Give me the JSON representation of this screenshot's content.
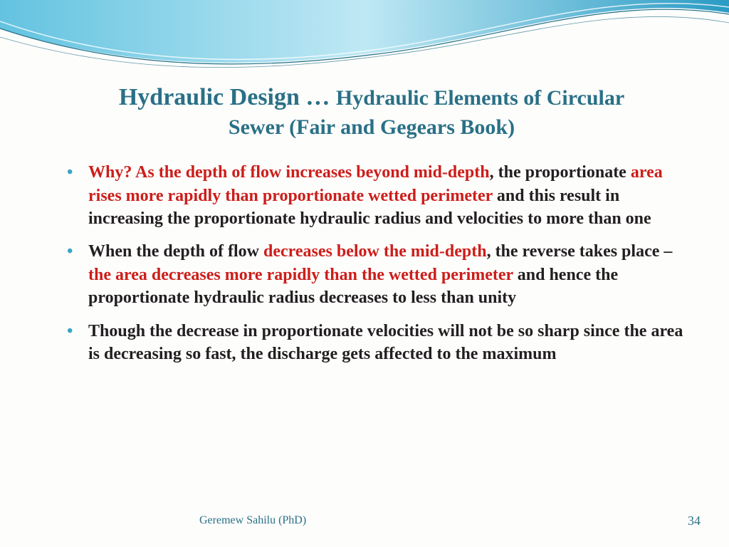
{
  "colors": {
    "title": "#2a7086",
    "bullet_marker": "#3aa6c2",
    "highlight": "#cc1e1a",
    "body_text": "#231f20",
    "footer": "#2a7086",
    "wave_light": "#bfe8f4",
    "wave_mid": "#63c3e0",
    "wave_dark": "#2a9bc4",
    "wave_line": "#1f6f85"
  },
  "title": {
    "main": "Hydraulic Design … ",
    "sub_line1": "Hydraulic Elements of Circular",
    "sub_line2": "Sewer (Fair and Gegears Book)"
  },
  "bullets": [
    {
      "segments": [
        {
          "text": "Why?  As the depth of flow increases beyond mid-depth",
          "hl": true
        },
        {
          "text": ", the proportionate ",
          "hl": false
        },
        {
          "text": "area rises more rapidly than proportionate wetted perimeter ",
          "hl": true
        },
        {
          "text": "and this result in increasing the proportionate hydraulic radius and velocities to more than one",
          "hl": false
        }
      ]
    },
    {
      "segments": [
        {
          "text": "When the depth of flow ",
          "hl": false
        },
        {
          "text": "decreases below the mid-depth",
          "hl": true
        },
        {
          "text": ", the reverse takes place – ",
          "hl": false
        },
        {
          "text": "the area decreases more rapidly than the wetted perimeter ",
          "hl": true
        },
        {
          "text": "and hence the proportionate hydraulic radius decreases to less than unity",
          "hl": false
        }
      ]
    },
    {
      "segments": [
        {
          "text": "Though the decrease in proportionate velocities will not be so sharp since the area is decreasing so fast, the discharge gets affected to the maximum",
          "hl": false
        }
      ]
    }
  ],
  "footer": {
    "author": "Geremew Sahilu (PhD)",
    "page": "34"
  }
}
